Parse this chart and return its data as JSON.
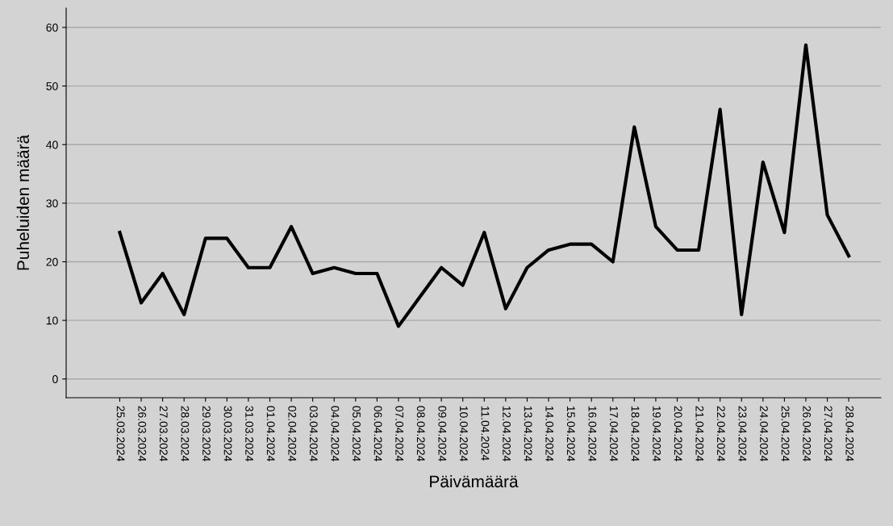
{
  "chart_data": {
    "type": "line",
    "xlabel": "Päivämäärä",
    "ylabel": "Puheluiden määrä",
    "categories": [
      "25.03.2024",
      "26.03.2024",
      "27.03.2024",
      "28.03.2024",
      "29.03.2024",
      "30.03.2024",
      "31.03.2024",
      "01.04.2024",
      "02.04.2024",
      "03.04.2024",
      "04.04.2024",
      "05.04.2024",
      "06.04.2024",
      "07.04.2024",
      "08.04.2024",
      "09.04.2024",
      "10.04.2024",
      "11.04.2024",
      "12.04.2024",
      "13.04.2024",
      "14.04.2024",
      "15.04.2024",
      "16.04.2024",
      "17.04.2024",
      "18.04.2024",
      "19.04.2024",
      "20.04.2024",
      "21.04.2024",
      "22.04.2024",
      "23.04.2024",
      "24.04.2024",
      "25.04.2024",
      "26.04.2024",
      "27.04.2024",
      "28.04.2024"
    ],
    "series": [
      {
        "color": "#000000",
        "values": [
          25,
          13,
          18,
          11,
          24,
          24,
          19,
          19,
          26,
          18,
          19,
          18,
          18,
          9,
          14,
          19,
          16,
          25,
          12,
          19,
          22,
          23,
          23,
          20,
          43,
          26,
          22,
          22,
          46,
          11,
          37,
          25,
          57,
          28,
          21
        ]
      }
    ],
    "ylim": [
      -3.2,
      63.3
    ],
    "yticks": [
      0,
      10,
      20,
      30,
      40,
      50,
      60
    ],
    "grid": "y",
    "marker": "none",
    "line_style": "solid",
    "legend": false
  }
}
